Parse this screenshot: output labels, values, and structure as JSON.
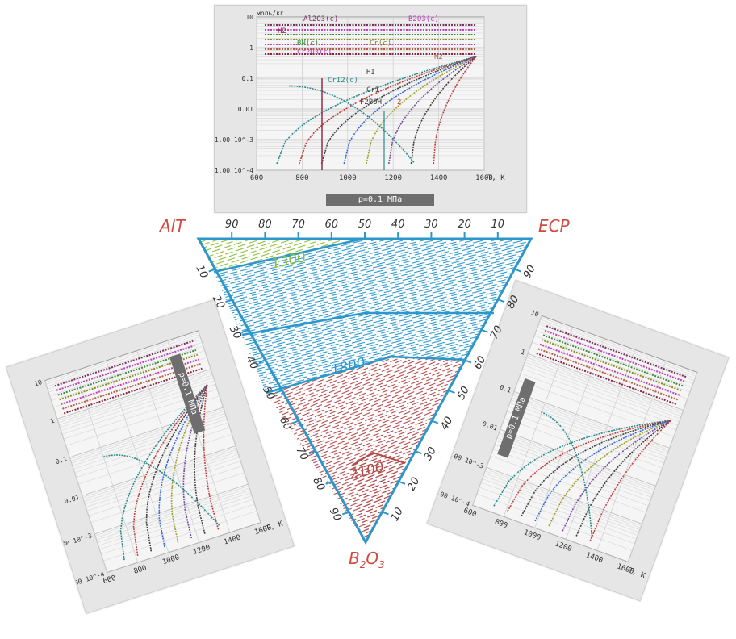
{
  "top_chart": {
    "y_unit": "моль/кг",
    "x_unit": "T, K",
    "y_ticks": [
      "10",
      "1",
      "0.1",
      "0.01",
      "1.00 10^-3",
      "1.00 10^-4"
    ],
    "x_ticks": [
      "600",
      "800",
      "1000",
      "1200",
      "1400",
      "1600"
    ],
    "status": "p=0.1 МПа",
    "series_labels": [
      {
        "text": "Al2O3(c)",
        "color": "#7a2e5c"
      },
      {
        "text": "B2O3(c)",
        "color": "#c040c0"
      },
      {
        "text": "H2",
        "color": "#8a2040"
      },
      {
        "text": "BN(c)",
        "color": "#3a8a3a"
      },
      {
        "text": "Cr(c)",
        "color": "#8a8a20"
      },
      {
        "text": "Cr2O3(c)",
        "color": "#c040c0"
      },
      {
        "text": "N2",
        "color": "#b06040"
      },
      {
        "text": "HI",
        "color": "#404040"
      },
      {
        "text": "CrI2(c)",
        "color": "#2a8a8a"
      },
      {
        "text": "CrI",
        "color": "#404040"
      },
      {
        "text": "F2BOH",
        "color": "#404040"
      },
      {
        "text": "2",
        "color": "#c04040"
      }
    ]
  },
  "left_chart": {
    "status": "p=0.1 МПа",
    "x_unit": "T, K",
    "x_ticks": [
      "600",
      "800",
      "1000",
      "1200",
      "1400",
      "1600"
    ],
    "y_ticks": [
      "10",
      "1",
      "0.1",
      "0.01",
      "1.00 10^-3",
      "1.00 10^-4"
    ]
  },
  "right_chart": {
    "status": "p=0.1 МПа",
    "x_unit": "T, K",
    "x_ticks": [
      "600",
      "800",
      "1000",
      "1200",
      "1400",
      "1600"
    ],
    "y_ticks": [
      "10",
      "1",
      "0.1",
      "0.01",
      "1.00 10^-3",
      "1.00 10^-4"
    ]
  },
  "triangle": {
    "corner_left": "AlT",
    "corner_right": "ECP",
    "corner_bottom": "B2O3",
    "top_ticks": [
      "90",
      "80",
      "70",
      "60",
      "50",
      "40",
      "30",
      "20",
      "10"
    ],
    "left_ticks": [
      "10",
      "20",
      "30",
      "40",
      "50",
      "60",
      "70",
      "80",
      "90"
    ],
    "right_ticks": [
      "90",
      "80",
      "70",
      "60",
      "50",
      "40",
      "30",
      "20",
      "10"
    ],
    "regions": [
      {
        "label": "1300",
        "color": "#8bbf3a"
      },
      {
        "label": "1800",
        "color": "#2d97cc"
      },
      {
        "label": "2100",
        "color": "#b24a4a"
      }
    ]
  }
}
